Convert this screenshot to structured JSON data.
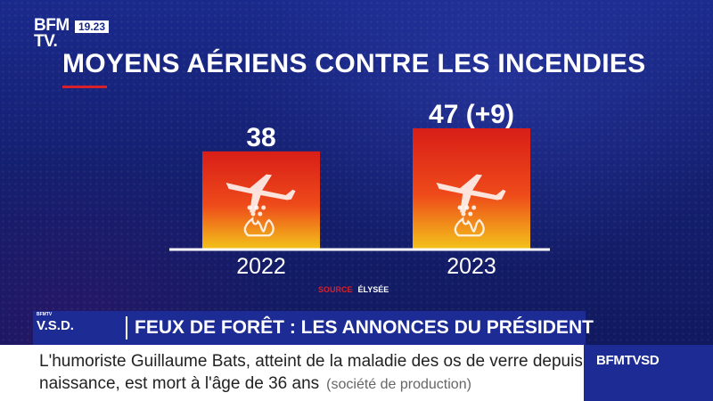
{
  "brand": {
    "logo_line1": "BFM",
    "logo_line2": "TV.",
    "clock": "19.23"
  },
  "chart_data": {
    "type": "bar",
    "title": "MOYENS AÉRIENS CONTRE LES INCENDIES",
    "categories": [
      "2022",
      "2023"
    ],
    "values": [
      38,
      47
    ],
    "value_labels": [
      "38",
      "47 (+9)"
    ],
    "xlabel": "",
    "ylabel": "",
    "ylim": [
      0,
      47
    ],
    "grid": false,
    "source_label": "SOURCE",
    "source_value": "ÉLYSÉE",
    "colors": {
      "bar_top": "#d81e18",
      "bar_mid": "#ee4a1a",
      "bar_bottom": "#f3c21b"
    }
  },
  "banner": {
    "program": "V.S.D.",
    "program_small": "BFMTV",
    "headline": "FEUX DE FORÊT : LES ANNONCES DU PRÉSIDENT"
  },
  "ticker": {
    "line1": "L'humoriste Guillaume Bats, atteint de la maladie des os de verre depuis sa",
    "line2": "naissance, est mort à l'âge de 36 ans",
    "credit": "(société de production)"
  },
  "channel": {
    "name": "BFMTVSD"
  }
}
